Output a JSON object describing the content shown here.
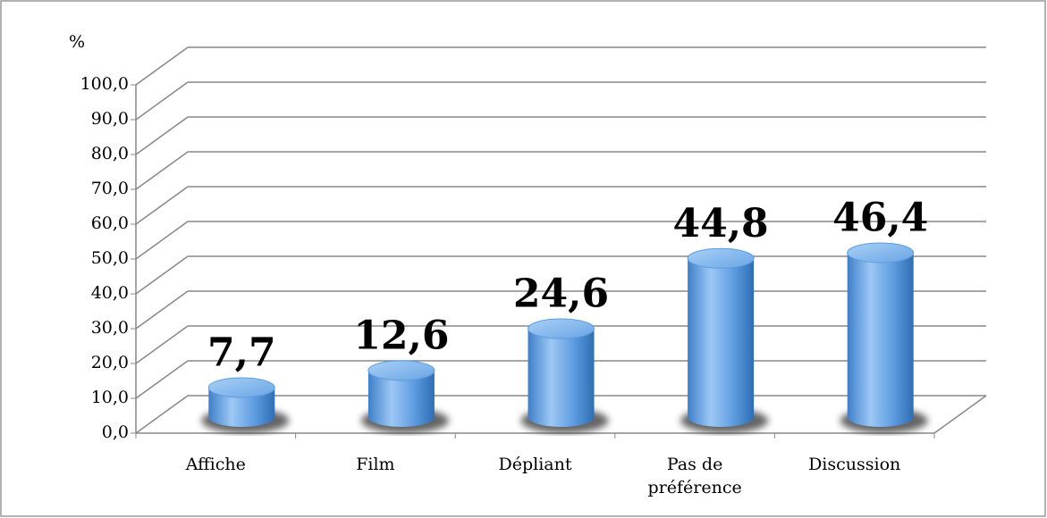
{
  "chart_data": {
    "type": "bar3d",
    "y_axis_label": "%",
    "categories": [
      "Affiche",
      "Film",
      "Dépliant",
      "Pas de préférence",
      "Discussion"
    ],
    "values": [
      7.7,
      12.6,
      24.6,
      44.8,
      46.4
    ],
    "value_labels": [
      "7,7",
      "12,6",
      "24,6",
      "44,8",
      "46,4"
    ],
    "color": "#5b9bd5",
    "ylim": [
      0,
      100
    ],
    "yticks": [
      {
        "value": 0,
        "label": "0,0"
      },
      {
        "value": 10,
        "label": "10,0"
      },
      {
        "value": 20,
        "label": "20,0"
      },
      {
        "value": 30,
        "label": "30,0"
      },
      {
        "value": 40,
        "label": "40,0"
      },
      {
        "value": 50,
        "label": "50,0"
      },
      {
        "value": 60,
        "label": "60,0"
      },
      {
        "value": 70,
        "label": "70,0"
      },
      {
        "value": 80,
        "label": "80,0"
      },
      {
        "value": 90,
        "label": "90,0"
      },
      {
        "value": 100,
        "label": "100,0"
      }
    ],
    "grid": true
  }
}
